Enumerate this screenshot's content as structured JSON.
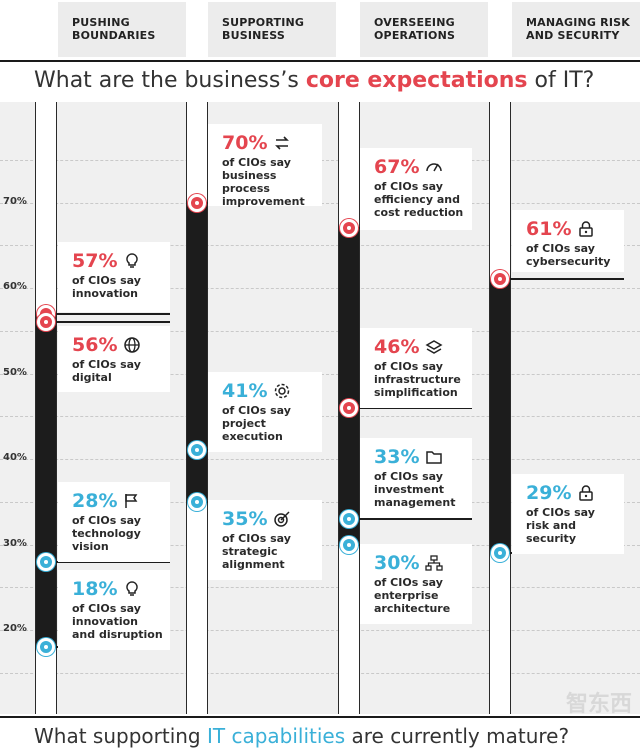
{
  "headers": {
    "col1": "PUSHING BOUNDARIES",
    "col2": "SUPPORTING BUSINESS",
    "col3": "OVERSEEING OPERATIONS",
    "col4": "MANAGING RISK AND SECURITY"
  },
  "headline": {
    "before": "What are the business’s ",
    "highlight": "core expectations",
    "after": " of IT?"
  },
  "footline": {
    "before": "What supporting ",
    "highlight": "IT capabilities",
    "after": " are currently mature?"
  },
  "watermark": "智东西",
  "colors": {
    "expectation": "#e4454f",
    "capability": "#3ab0d8",
    "bar": "#1c1c1c"
  },
  "chart_data": {
    "type": "range-dot",
    "title": "What are the business’s core expectations of IT?",
    "footer": "What supporting IT capabilities are currently mature?",
    "ylim": [
      10,
      80
    ],
    "yticks": [
      20,
      30,
      40,
      50,
      60,
      70
    ],
    "ytick_labels": [
      "20%",
      "30%",
      "40%",
      "50%",
      "60%",
      "70%"
    ],
    "categories": [
      "PUSHING BOUNDARIES",
      "SUPPORTING BUSINESS",
      "OVERSEEING OPERATIONS",
      "MANAGING RISK AND SECURITY"
    ],
    "points": [
      {
        "col": 0,
        "value": 57,
        "pct": "57%",
        "desc": "of CIOs say innovation",
        "series": "expectation",
        "icon": "lightbulb-icon"
      },
      {
        "col": 0,
        "value": 56,
        "pct": "56%",
        "desc": "of CIOs say digital",
        "series": "expectation",
        "icon": "globe-icon"
      },
      {
        "col": 0,
        "value": 28,
        "pct": "28%",
        "desc": "of CIOs say technology vision",
        "series": "capability",
        "icon": "flag-icon"
      },
      {
        "col": 0,
        "value": 18,
        "pct": "18%",
        "desc": "of CIOs say innovation and disruption",
        "series": "capability",
        "icon": "lightbulb-icon"
      },
      {
        "col": 1,
        "value": 70,
        "pct": "70%",
        "desc": "of CIOs say business process improvement",
        "series": "expectation",
        "icon": "arrows-cycle-icon"
      },
      {
        "col": 1,
        "value": 41,
        "pct": "41%",
        "desc": "of CIOs say project execution",
        "series": "capability",
        "icon": "gear-icon"
      },
      {
        "col": 1,
        "value": 35,
        "pct": "35%",
        "desc": "of CIOs say strategic alignment",
        "series": "capability",
        "icon": "target-icon"
      },
      {
        "col": 2,
        "value": 67,
        "pct": "67%",
        "desc": "of CIOs say efficiency and cost reduction",
        "series": "expectation",
        "icon": "speedometer-icon"
      },
      {
        "col": 2,
        "value": 46,
        "pct": "46%",
        "desc": "of CIOs say infrastructure simplification",
        "series": "expectation",
        "icon": "layers-icon"
      },
      {
        "col": 2,
        "value": 33,
        "pct": "33%",
        "desc": "of CIOs say investment management",
        "series": "capability",
        "icon": "folder-icon"
      },
      {
        "col": 2,
        "value": 30,
        "pct": "30%",
        "desc": "of CIOs say enterprise architecture",
        "series": "capability",
        "icon": "network-icon"
      },
      {
        "col": 3,
        "value": 61,
        "pct": "61%",
        "desc": "of CIOs say cybersecurity",
        "series": "expectation",
        "icon": "lock-icon"
      },
      {
        "col": 3,
        "value": 29,
        "pct": "29%",
        "desc": "of CIOs say risk and security",
        "series": "capability",
        "icon": "lock-icon"
      }
    ]
  }
}
